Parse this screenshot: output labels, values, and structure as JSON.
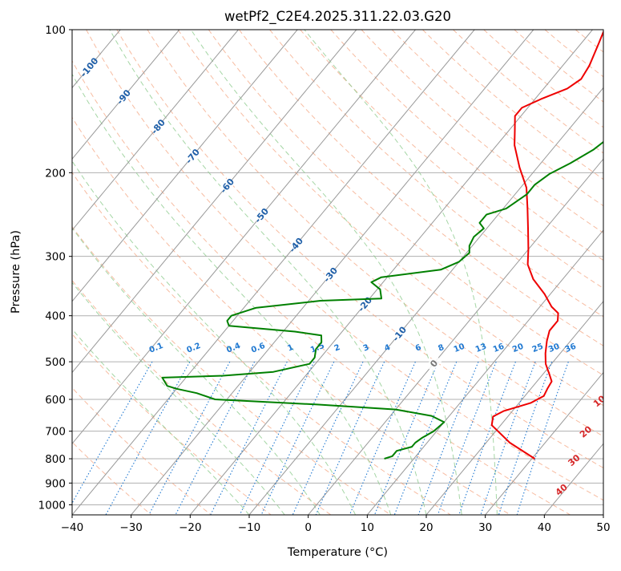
{
  "chart_data": {
    "type": "line",
    "title": "wetPf2_C2E4.2025.311.22.03.G20",
    "xlabel": "Temperature (°C)",
    "ylabel": "Pressure (hPa)",
    "xlim": [
      -40,
      50
    ],
    "ylim_hpa": [
      1050,
      100
    ],
    "y_scale": "log",
    "x_ticks": [
      "−40",
      "−30",
      "−20",
      "−10",
      "0",
      "10",
      "20",
      "30",
      "40",
      "50"
    ],
    "y_ticks": [
      {
        "p": 100,
        "label": "100"
      },
      {
        "p": 200,
        "label": "200"
      },
      {
        "p": 300,
        "label": "300"
      },
      {
        "p": 400,
        "label": "400"
      },
      {
        "p": 500,
        "label": "500"
      },
      {
        "p": 600,
        "label": "600"
      },
      {
        "p": 700,
        "label": "700"
      },
      {
        "p": 800,
        "label": "800"
      },
      {
        "p": 900,
        "label": "900"
      },
      {
        "p": 1000,
        "label": "1000"
      }
    ],
    "grid": true,
    "colors": {
      "temperature": "#ee0000",
      "dewpoint": "#008000",
      "isotherm": "#999999",
      "dry_adiabat": "#f4a582",
      "moist_adiabat": "#8fcc8f",
      "mixing_ratio": "#1f78d1",
      "isotherm_label": "#1f5fa8",
      "dry_adiabat_label": "#d62728",
      "zero_label": "#777777"
    },
    "series": [
      {
        "key": "temperature",
        "points": [
          [
            30.5,
            800
          ],
          [
            24,
            740
          ],
          [
            18.5,
            680
          ],
          [
            17.5,
            652
          ],
          [
            18.5,
            635
          ],
          [
            22,
            610
          ],
          [
            23.2,
            590
          ],
          [
            22.8,
            570
          ],
          [
            22.5,
            550
          ],
          [
            21,
            530
          ],
          [
            19,
            505
          ],
          [
            17.5,
            480
          ],
          [
            16,
            452
          ],
          [
            15,
            430
          ],
          [
            15,
            410
          ],
          [
            14,
            395
          ],
          [
            12,
            383
          ],
          [
            9,
            360
          ],
          [
            5,
            335
          ],
          [
            2,
            312
          ],
          [
            0,
            290
          ],
          [
            -3,
            262
          ],
          [
            -6,
            237
          ],
          [
            -9,
            215
          ],
          [
            -13,
            195
          ],
          [
            -17,
            175
          ],
          [
            -19,
            163
          ],
          [
            -21,
            152
          ],
          [
            -21,
            146
          ],
          [
            -19,
            140
          ],
          [
            -16,
            133
          ],
          [
            -15,
            127
          ],
          [
            -15.5,
            119
          ],
          [
            -17,
            107
          ],
          [
            -18,
            100
          ]
        ]
      },
      {
        "key": "dewpoint",
        "points": [
          [
            5,
            800
          ],
          [
            6,
            790
          ],
          [
            6,
            770
          ],
          [
            8,
            755
          ],
          [
            8,
            740
          ],
          [
            8.5,
            722
          ],
          [
            9.5,
            700
          ],
          [
            10,
            670
          ],
          [
            7,
            650
          ],
          [
            0,
            630
          ],
          [
            -14,
            615
          ],
          [
            -32,
            600
          ],
          [
            -36,
            582
          ],
          [
            -40,
            570
          ],
          [
            -42,
            562
          ],
          [
            -44,
            540
          ],
          [
            -34,
            535
          ],
          [
            -26,
            525
          ],
          [
            -21,
            505
          ],
          [
            -21,
            490
          ],
          [
            -22,
            470
          ],
          [
            -22,
            455
          ],
          [
            -23,
            440
          ],
          [
            -28,
            432
          ],
          [
            -40,
            420
          ],
          [
            -41,
            410
          ],
          [
            -41,
            400
          ],
          [
            -38,
            385
          ],
          [
            -28,
            372
          ],
          [
            -18,
            368
          ],
          [
            -19.5,
            352
          ],
          [
            -22,
            340
          ],
          [
            -21,
            332
          ],
          [
            -12,
            320
          ],
          [
            -10,
            308
          ],
          [
            -9.5,
            295
          ],
          [
            -10.5,
            285
          ],
          [
            -11,
            273
          ],
          [
            -10.5,
            262
          ],
          [
            -12,
            255
          ],
          [
            -12,
            245
          ],
          [
            -9.5,
            238
          ],
          [
            -8,
            222
          ],
          [
            -8,
            212
          ],
          [
            -7,
            201
          ],
          [
            -5,
            191
          ],
          [
            -3,
            179
          ],
          [
            -2,
            168
          ],
          [
            -1.5,
            155
          ],
          [
            -1,
            146
          ],
          [
            -3,
            137
          ],
          [
            -4,
            128
          ],
          [
            -3.5,
            116
          ],
          [
            -2,
            106
          ],
          [
            -1,
            100
          ]
        ]
      }
    ],
    "isotherm_labels": [
      "-100",
      "-90",
      "-80",
      "-70",
      "-60",
      "-50",
      "-40",
      "-30",
      "-20",
      "-10",
      "0"
    ],
    "dry_adiabat_labels": [
      "10",
      "20",
      "30",
      "40"
    ],
    "mixing_ratio_labels": [
      "0.1",
      "0.2",
      "0.4",
      "0.6",
      "1",
      "1.5",
      "2",
      "3",
      "4",
      "6",
      "8",
      "10",
      "13",
      "16",
      "20",
      "25",
      "30",
      "36"
    ]
  }
}
